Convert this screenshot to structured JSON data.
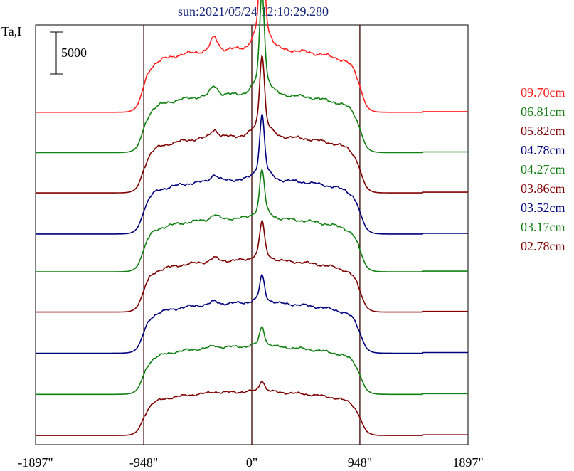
{
  "chart_data": {
    "type": "line",
    "title": "sun:2021/05/24 12:10:29.280",
    "ylabel": "Ta,I",
    "scale_bar_label": "5000",
    "x_ticks": [
      {
        "value": -1897,
        "label": "-1897\""
      },
      {
        "value": -948,
        "label": "-948\""
      },
      {
        "value": 0,
        "label": "0\""
      },
      {
        "value": 948,
        "label": "948\""
      },
      {
        "value": 1897,
        "label": "1897\""
      }
    ],
    "xlim": [
      -1897,
      1897
    ],
    "vertical_lines": [
      -948,
      0,
      948
    ],
    "series": [
      {
        "name": "09.70cm",
        "color": "#ff2020",
        "baseline": 39000,
        "plateau": 7600,
        "peak": 13000
      },
      {
        "name": "06.81cm",
        "color": "#108010",
        "baseline": 34200,
        "plateau": 7000,
        "peak": 9800
      },
      {
        "name": "05.82cm",
        "color": "#800000",
        "baseline": 29400,
        "plateau": 6800,
        "peak": 7800
      },
      {
        "name": "04.78cm",
        "color": "#00007f",
        "baseline": 24500,
        "plateau": 6500,
        "peak": 6200
      },
      {
        "name": "04.27cm",
        "color": "#108010",
        "baseline": 20000,
        "plateau": 6400,
        "peak": 4600
      },
      {
        "name": "03.86cm",
        "color": "#800000",
        "baseline": 15200,
        "plateau": 6200,
        "peak": 3700
      },
      {
        "name": "03.52cm",
        "color": "#00007f",
        "baseline": 10300,
        "plateau": 6000,
        "peak": 2600
      },
      {
        "name": "03.17cm",
        "color": "#108010",
        "baseline": 5400,
        "plateau": 5700,
        "peak": 1900
      },
      {
        "name": "02.78cm",
        "color": "#800000",
        "baseline": 500,
        "plateau": 5200,
        "peak": 1100
      }
    ]
  }
}
